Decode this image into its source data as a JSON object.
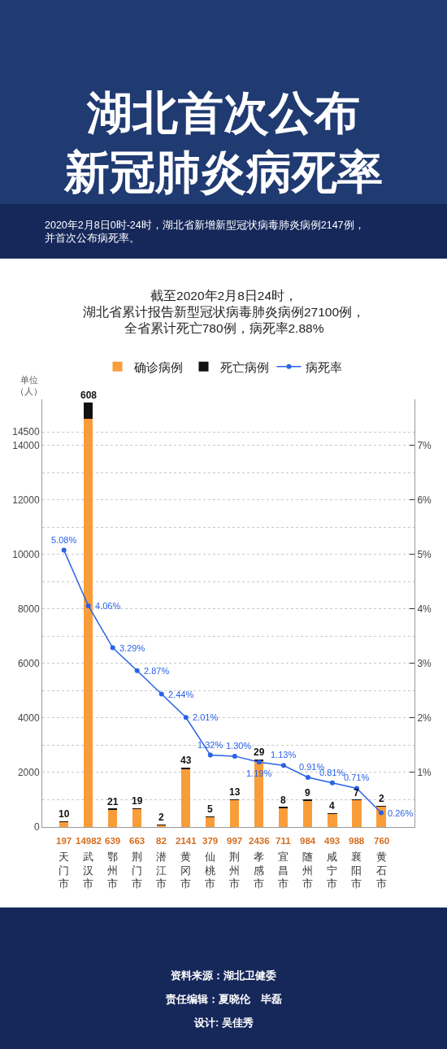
{
  "chart_data": {
    "type": "bar",
    "title": "湖北首次公布新冠肺炎病死率",
    "subtitle": "2020年2月8日0时-24时，湖北省新增新型冠状病毒肺炎病例2147例，并首次公布病死率。",
    "ylabel": "单位（人）",
    "annotations": [
      "截至2020年2月8日24时，湖北省累计报告新型冠状病毒肺炎病例27100例，全省累计死亡780例，病死率2.88%",
      "资料来源：湖北卫健委",
      "责任编辑：夏晓伦　毕磊",
      "设计: 吴佳秀"
    ],
    "categories": [
      "天门市",
      "武汉市",
      "鄂州市",
      "荆门市",
      "潜江市",
      "黄冈市",
      "仙桃市",
      "荆州市",
      "孝感市",
      "宜昌市",
      "随州市",
      "咸宁市",
      "襄阳市",
      "黄石市"
    ],
    "series": [
      {
        "name": "确诊病例",
        "color": "#f99d3a",
        "values": [
          197,
          14982,
          639,
          663,
          82,
          2141,
          379,
          997,
          2436,
          711,
          984,
          493,
          988,
          760
        ],
        "value_labels": [
          "197",
          "14982",
          "639",
          "663",
          "82",
          "2141",
          "379",
          "997",
          "2436",
          "711",
          "984",
          "493",
          "988",
          "760"
        ]
      },
      {
        "name": "死亡病例",
        "color": "#111111",
        "values": [
          10,
          608,
          21,
          19,
          2,
          43,
          5,
          13,
          29,
          8,
          9,
          4,
          7,
          2
        ],
        "value_labels": [
          "10",
          "608",
          "21",
          "19",
          "2",
          "43",
          "5",
          "13",
          "29",
          "8",
          "9",
          "4",
          "7",
          "2"
        ]
      },
      {
        "name": "病死率",
        "type": "line",
        "axis": "y2",
        "color": "#2a63e6",
        "values": [
          5.08,
          4.06,
          3.29,
          2.87,
          2.44,
          2.01,
          1.32,
          1.3,
          1.19,
          1.13,
          0.91,
          0.81,
          0.71,
          0.26
        ],
        "value_labels": [
          "5.08%",
          "4.06%",
          "3.29%",
          "2.87%",
          "2.44%",
          "2.01%",
          "1.32%",
          "1.30%",
          "1.19%",
          "1.13%",
          "0.91%",
          "0.81%",
          "0.71%",
          "0.26%"
        ]
      }
    ],
    "stacked": true,
    "ylim": [
      0,
      15700
    ],
    "yticks": [
      0,
      {
        "value": 1000,
        "label": null
      },
      2000,
      {
        "value": 3000,
        "label": null
      },
      4000,
      {
        "value": 5000,
        "label": null
      },
      6000,
      {
        "value": 7000,
        "label": null
      },
      8000,
      {
        "value": 9000,
        "label": null
      },
      10000,
      {
        "value": 11000,
        "label": null
      },
      12000,
      {
        "value": 13000,
        "label": null
      },
      14000,
      14500
    ],
    "y2lim": [
      0,
      7.85
    ],
    "y2ticks": [
      {
        "value": 1,
        "label": "1%"
      },
      {
        "value": 2,
        "label": "2%"
      },
      {
        "value": 3,
        "label": "3%"
      },
      {
        "value": 4,
        "label": "4%"
      },
      {
        "value": 5,
        "label": "5%"
      },
      {
        "value": 6,
        "label": "6%"
      },
      {
        "value": 7,
        "label": "7%"
      }
    ],
    "grid": "y",
    "legend": "top",
    "marker": "circle",
    "line_style": "solid"
  }
}
